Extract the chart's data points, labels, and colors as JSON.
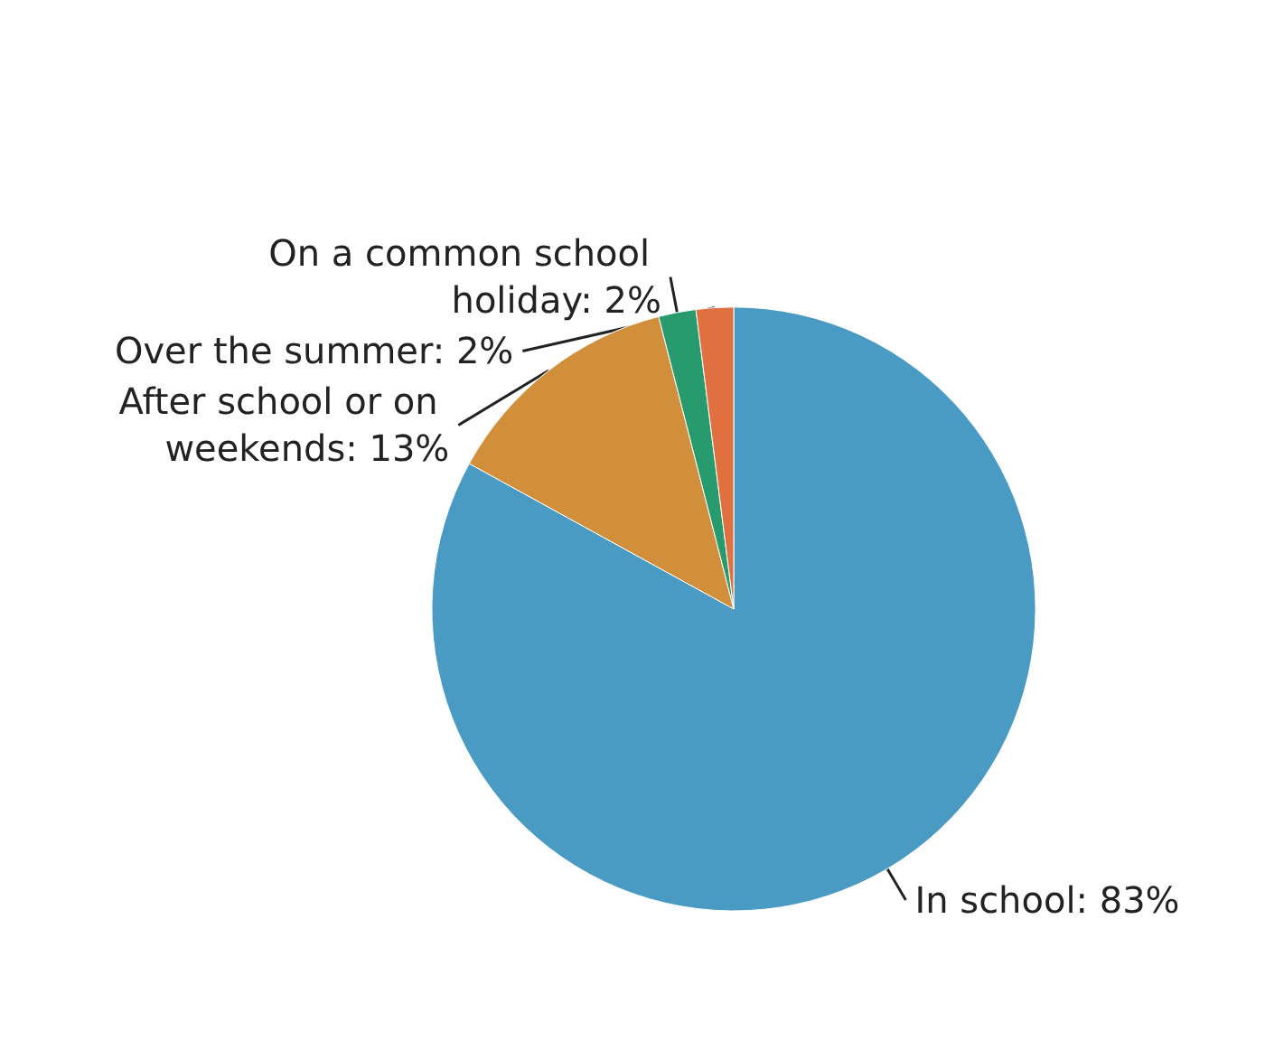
{
  "chart_data": {
    "type": "pie",
    "categories": [
      "In school",
      "After school or on weekends",
      "On a common school holiday",
      "Over the summer"
    ],
    "values": [
      83,
      13,
      2,
      2
    ],
    "value_labels": [
      "83%",
      "13%",
      "2%",
      "2%"
    ],
    "colors": [
      "#4a9bc4",
      "#d18f3b",
      "#279b6e",
      "#e07040"
    ],
    "legend": false
  }
}
